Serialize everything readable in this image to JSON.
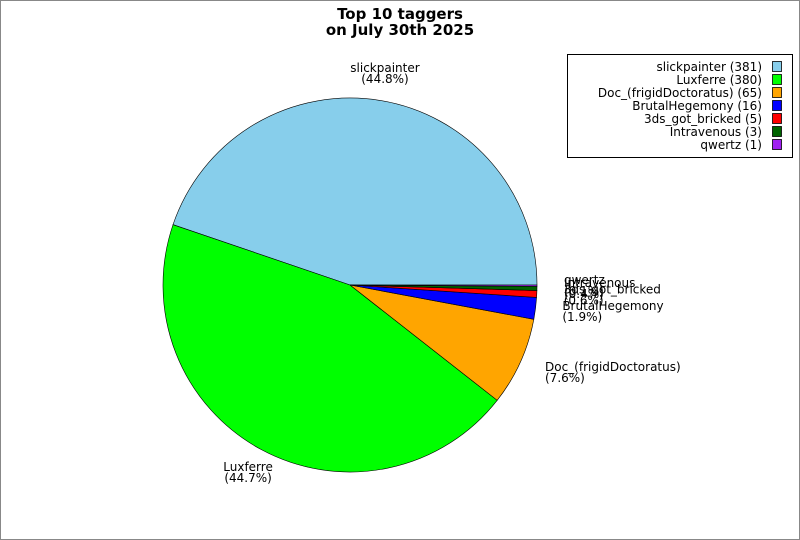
{
  "chart_data": {
    "type": "pie",
    "title": "Top 10 taggers",
    "subtitle": "on July 30th 2025",
    "categories": [
      "slickpainter",
      "Luxferre",
      "Doc_(frigidDoctoratus)",
      "BrutalHegemony",
      "3ds_got_bricked",
      "Intravenous",
      "qwertz"
    ],
    "values": [
      381,
      380,
      65,
      16,
      5,
      3,
      1
    ],
    "value_labels": [
      "(44.8%)",
      "(44.7%)",
      "(7.6%)",
      "(1.9%)",
      "(0.6%)",
      "(0.4%)",
      "(0.1%)"
    ],
    "legend_labels": [
      "slickpainter (381)",
      "Luxferre (380)",
      "Doc_(frigidDoctoratus) (65)",
      "BrutalHegemony (16)",
      "3ds_got_bricked (5)",
      "Intravenous (3)",
      "qwertz (1)"
    ],
    "colors": [
      "#87ceeb",
      "#00ff00",
      "#ffa500",
      "#0000ff",
      "#ff0000",
      "#006400",
      "#a020f0"
    ],
    "legend_position": "upper right"
  }
}
